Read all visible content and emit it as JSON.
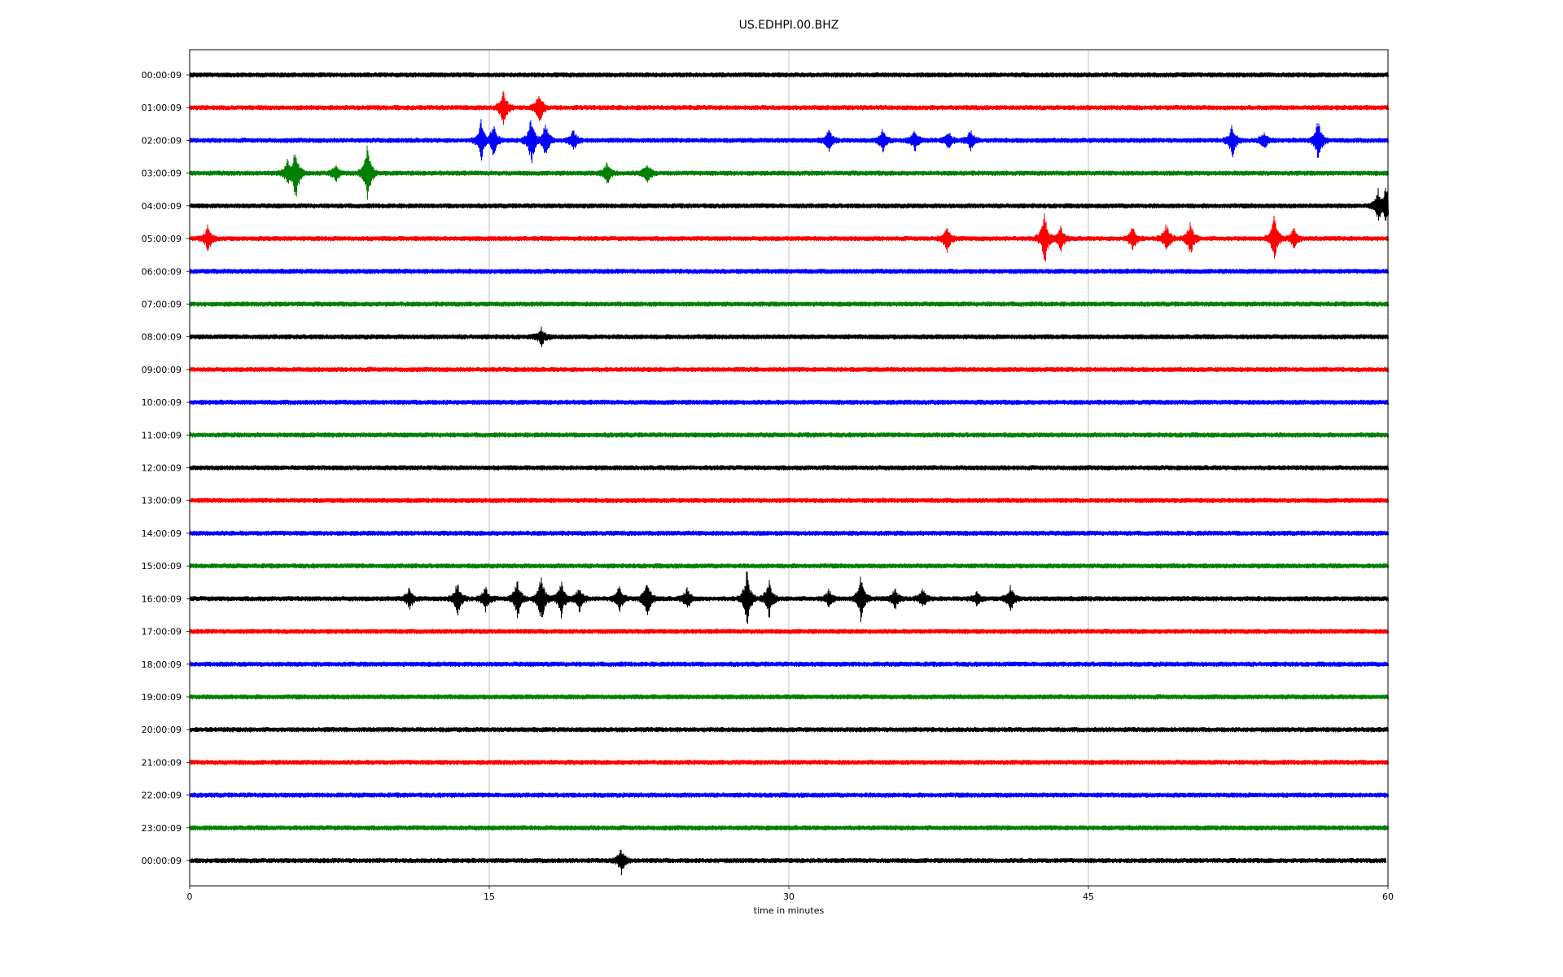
{
  "chart_data": {
    "type": "line",
    "title": "US.EDHPI.00.BHZ",
    "xlabel": "time in minutes",
    "ylabel": "",
    "xlim": [
      0,
      60
    ],
    "x_ticks": [
      "0",
      "15",
      "30",
      "45",
      "60"
    ],
    "x_tick_values": [
      0,
      15,
      30,
      45,
      60
    ],
    "vertical_grid": true,
    "trace_colors": [
      "#000000",
      "#ff0000",
      "#0000ff",
      "#008000"
    ],
    "rows": [
      {
        "label": "00:00:09",
        "color": "#000000",
        "events": []
      },
      {
        "label": "01:00:09",
        "color": "#ff0000",
        "events": [
          {
            "t": 15.7,
            "amp": 0.9
          },
          {
            "t": 17.5,
            "amp": 0.8
          }
        ]
      },
      {
        "label": "02:00:09",
        "color": "#0000ff",
        "events": [
          {
            "t": 14.6,
            "amp": 1.0
          },
          {
            "t": 15.2,
            "amp": 0.8
          },
          {
            "t": 17.1,
            "amp": 1.2
          },
          {
            "t": 17.8,
            "amp": 0.9
          },
          {
            "t": 19.2,
            "amp": 0.5
          },
          {
            "t": 32.0,
            "amp": 0.5
          },
          {
            "t": 34.7,
            "amp": 0.5
          },
          {
            "t": 36.3,
            "amp": 0.5
          },
          {
            "t": 38.0,
            "amp": 0.4
          },
          {
            "t": 39.1,
            "amp": 0.5
          },
          {
            "t": 52.2,
            "amp": 0.8
          },
          {
            "t": 53.8,
            "amp": 0.4
          },
          {
            "t": 56.5,
            "amp": 1.0
          }
        ]
      },
      {
        "label": "03:00:09",
        "color": "#008000",
        "events": [
          {
            "t": 4.9,
            "amp": 0.6
          },
          {
            "t": 5.3,
            "amp": 1.4
          },
          {
            "t": 7.3,
            "amp": 0.4
          },
          {
            "t": 8.9,
            "amp": 1.4
          },
          {
            "t": 20.9,
            "amp": 0.5
          },
          {
            "t": 22.9,
            "amp": 0.5
          }
        ]
      },
      {
        "label": "04:00:09",
        "color": "#000000",
        "events": [
          {
            "t": 59.5,
            "amp": 0.8
          },
          {
            "t": 59.9,
            "amp": 0.9
          }
        ]
      },
      {
        "label": "05:00:09",
        "color": "#ff0000",
        "events": [
          {
            "t": 0.9,
            "amp": 0.6
          },
          {
            "t": 37.9,
            "amp": 0.6
          },
          {
            "t": 42.8,
            "amp": 1.3
          },
          {
            "t": 43.6,
            "amp": 0.6
          },
          {
            "t": 47.2,
            "amp": 0.6
          },
          {
            "t": 48.9,
            "amp": 0.7
          },
          {
            "t": 50.1,
            "amp": 0.8
          },
          {
            "t": 54.3,
            "amp": 1.1
          },
          {
            "t": 55.3,
            "amp": 0.5
          }
        ]
      },
      {
        "label": "06:00:09",
        "color": "#0000ff",
        "events": []
      },
      {
        "label": "07:00:09",
        "color": "#008000",
        "events": []
      },
      {
        "label": "08:00:09",
        "color": "#000000",
        "events": [
          {
            "t": 17.6,
            "amp": 0.4
          }
        ]
      },
      {
        "label": "09:00:09",
        "color": "#ff0000",
        "events": []
      },
      {
        "label": "10:00:09",
        "color": "#0000ff",
        "events": []
      },
      {
        "label": "11:00:09",
        "color": "#008000",
        "events": []
      },
      {
        "label": "12:00:09",
        "color": "#000000",
        "events": []
      },
      {
        "label": "13:00:09",
        "color": "#ff0000",
        "events": []
      },
      {
        "label": "14:00:09",
        "color": "#0000ff",
        "events": []
      },
      {
        "label": "15:00:09",
        "color": "#008000",
        "events": []
      },
      {
        "label": "16:00:09",
        "color": "#000000",
        "events": [
          {
            "t": 11.0,
            "amp": 0.5
          },
          {
            "t": 13.4,
            "amp": 0.8
          },
          {
            "t": 14.8,
            "amp": 0.6
          },
          {
            "t": 16.4,
            "amp": 1.0
          },
          {
            "t": 17.6,
            "amp": 1.2
          },
          {
            "t": 18.6,
            "amp": 0.9
          },
          {
            "t": 19.5,
            "amp": 0.6
          },
          {
            "t": 21.5,
            "amp": 0.6
          },
          {
            "t": 22.9,
            "amp": 0.9
          },
          {
            "t": 24.9,
            "amp": 0.5
          },
          {
            "t": 27.9,
            "amp": 1.4
          },
          {
            "t": 29.0,
            "amp": 0.9
          },
          {
            "t": 32.0,
            "amp": 0.4
          },
          {
            "t": 33.6,
            "amp": 1.1
          },
          {
            "t": 35.3,
            "amp": 0.5
          },
          {
            "t": 36.7,
            "amp": 0.4
          },
          {
            "t": 39.4,
            "amp": 0.3
          },
          {
            "t": 41.1,
            "amp": 0.6
          }
        ]
      },
      {
        "label": "17:00:09",
        "color": "#ff0000",
        "events": []
      },
      {
        "label": "18:00:09",
        "color": "#0000ff",
        "events": []
      },
      {
        "label": "19:00:09",
        "color": "#008000",
        "events": []
      },
      {
        "label": "20:00:09",
        "color": "#000000",
        "events": []
      },
      {
        "label": "21:00:09",
        "color": "#ff0000",
        "events": []
      },
      {
        "label": "22:00:09",
        "color": "#0000ff",
        "events": []
      },
      {
        "label": "23:00:09",
        "color": "#008000",
        "events": []
      },
      {
        "label": "00:00:09",
        "color": "#000000",
        "events": [
          {
            "t": 21.6,
            "amp": 0.6
          }
        ],
        "end": 59.9
      }
    ]
  }
}
